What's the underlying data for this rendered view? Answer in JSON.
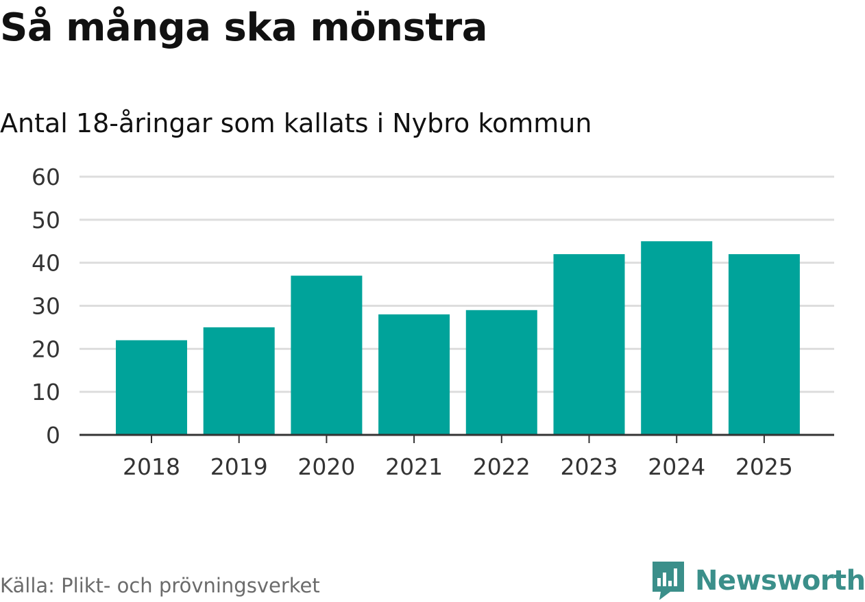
{
  "title": "Så många ska mönstra",
  "subtitle": "Antal 18-åringar som kallats i Nybro kommun",
  "source": "Källa: Plikt- och prövningsverket",
  "brand": {
    "name": "Newsworthy",
    "icon": "newsworthy-logo-icon",
    "color": "#3b8f8a"
  },
  "colors": {
    "bar": "#00a39a",
    "grid": "#dddddd",
    "axis": "#333333"
  },
  "chart_data": {
    "type": "bar",
    "categories": [
      "2018",
      "2019",
      "2020",
      "2021",
      "2022",
      "2023",
      "2024",
      "2025"
    ],
    "values": [
      22,
      25,
      37,
      28,
      29,
      42,
      45,
      42
    ],
    "yticks": [
      0,
      10,
      20,
      30,
      40,
      50,
      60
    ],
    "ylim": [
      0,
      60
    ],
    "grid": true,
    "legend": "none"
  }
}
